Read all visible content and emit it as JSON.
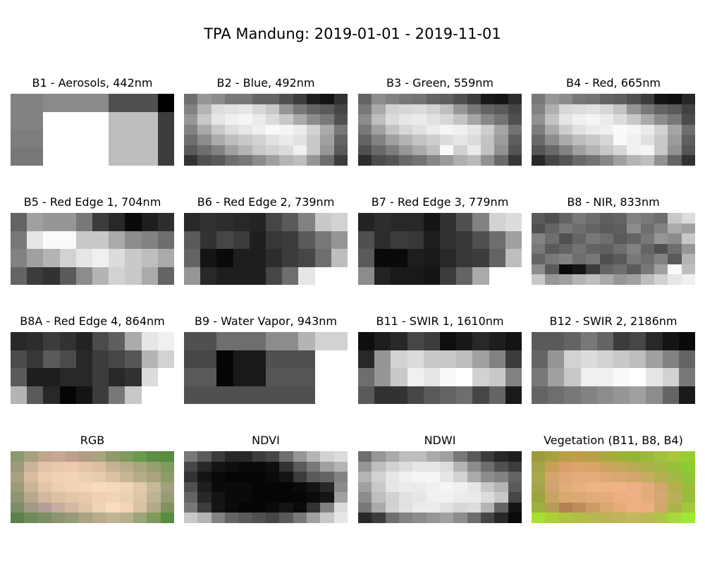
{
  "figure": {
    "title": "TPA Mandung: 2019-01-01 - 2019-11-01"
  },
  "chart_data": [
    {
      "type": "heatmap",
      "title": "B1 - Aerosols, 442nm",
      "colormap": "gray",
      "values": [
        [
          130,
          130,
          138,
          138,
          138,
          138,
          80,
          80,
          80,
          0
        ],
        [
          130,
          130,
          255,
          255,
          255,
          255,
          190,
          190,
          190,
          60
        ],
        [
          125,
          125,
          255,
          255,
          255,
          255,
          190,
          190,
          190,
          60
        ],
        [
          120,
          120,
          255,
          255,
          255,
          255,
          190,
          190,
          190,
          60
        ]
      ]
    },
    {
      "type": "heatmap",
      "title": "B2 - Blue, 492nm",
      "colormap": "gray",
      "values": [
        [
          110,
          150,
          140,
          120,
          120,
          100,
          100,
          80,
          60,
          30,
          20,
          50
        ],
        [
          130,
          180,
          220,
          225,
          230,
          215,
          200,
          150,
          120,
          100,
          90,
          70
        ],
        [
          150,
          200,
          230,
          240,
          245,
          235,
          220,
          200,
          170,
          140,
          120,
          80
        ],
        [
          130,
          170,
          200,
          220,
          230,
          240,
          250,
          245,
          235,
          210,
          170,
          120
        ],
        [
          110,
          140,
          170,
          190,
          200,
          210,
          225,
          235,
          225,
          200,
          160,
          100
        ],
        [
          90,
          110,
          130,
          160,
          180,
          200,
          210,
          220,
          240,
          200,
          150,
          90
        ],
        [
          50,
          80,
          90,
          110,
          120,
          140,
          160,
          180,
          190,
          150,
          110,
          60
        ]
      ]
    },
    {
      "type": "heatmap",
      "title": "B3 - Green, 559nm",
      "colormap": "gray",
      "values": [
        [
          100,
          140,
          130,
          120,
          115,
          100,
          95,
          80,
          60,
          25,
          20,
          45
        ],
        [
          120,
          170,
          210,
          215,
          220,
          210,
          190,
          150,
          120,
          100,
          90,
          70
        ],
        [
          140,
          190,
          220,
          230,
          235,
          225,
          215,
          195,
          165,
          135,
          115,
          80
        ],
        [
          120,
          160,
          195,
          215,
          225,
          235,
          245,
          240,
          230,
          205,
          165,
          115
        ],
        [
          100,
          130,
          160,
          180,
          195,
          205,
          220,
          230,
          220,
          195,
          155,
          95
        ],
        [
          80,
          105,
          125,
          150,
          170,
          190,
          250,
          210,
          235,
          195,
          145,
          85
        ],
        [
          45,
          75,
          85,
          105,
          115,
          135,
          155,
          175,
          185,
          145,
          105,
          55
        ]
      ]
    },
    {
      "type": "heatmap",
      "title": "B4 - Red, 665nm",
      "colormap": "gray",
      "values": [
        [
          120,
          150,
          140,
          120,
          115,
          100,
          95,
          80,
          60,
          20,
          15,
          40
        ],
        [
          130,
          175,
          215,
          220,
          225,
          215,
          195,
          150,
          120,
          100,
          90,
          65
        ],
        [
          145,
          195,
          230,
          240,
          245,
          235,
          220,
          200,
          170,
          140,
          120,
          75
        ],
        [
          125,
          170,
          205,
          225,
          235,
          240,
          250,
          245,
          235,
          210,
          165,
          110
        ],
        [
          105,
          140,
          170,
          190,
          200,
          215,
          250,
          240,
          225,
          200,
          155,
          95
        ],
        [
          85,
          105,
          130,
          160,
          180,
          200,
          215,
          240,
          245,
          200,
          145,
          85
        ],
        [
          40,
          70,
          85,
          105,
          115,
          135,
          160,
          180,
          190,
          145,
          100,
          50
        ]
      ]
    },
    {
      "type": "heatmap",
      "title": "B5 - Red Edge 1, 704nm",
      "colormap": "gray",
      "values": [
        [
          100,
          160,
          150,
          150,
          120,
          60,
          40,
          10,
          30,
          45
        ],
        [
          120,
          230,
          250,
          250,
          200,
          200,
          170,
          140,
          130,
          110
        ],
        [
          130,
          160,
          180,
          210,
          230,
          240,
          220,
          200,
          190,
          170
        ],
        [
          100,
          60,
          50,
          90,
          140,
          180,
          210,
          200,
          170,
          100
        ]
      ]
    },
    {
      "type": "heatmap",
      "title": "B6 - Red Edge 2, 739nm",
      "colormap": "gray",
      "values": [
        [
          40,
          50,
          45,
          40,
          35,
          70,
          90,
          130,
          200,
          210
        ],
        [
          90,
          50,
          70,
          60,
          30,
          55,
          60,
          90,
          120,
          150
        ],
        [
          100,
          20,
          10,
          30,
          30,
          45,
          60,
          70,
          110,
          190
        ],
        [
          150,
          40,
          30,
          30,
          30,
          70,
          110,
          230,
          255,
          255
        ]
      ]
    },
    {
      "type": "heatmap",
      "title": "B7 - Red Edge 3, 779nm",
      "colormap": "gray",
      "values": [
        [
          35,
          45,
          40,
          40,
          20,
          50,
          80,
          130,
          210,
          220
        ],
        [
          80,
          45,
          60,
          55,
          30,
          50,
          55,
          80,
          110,
          160
        ],
        [
          90,
          10,
          10,
          30,
          25,
          40,
          55,
          60,
          100,
          190
        ],
        [
          140,
          35,
          25,
          25,
          20,
          60,
          100,
          170,
          255,
          255
        ]
      ]
    },
    {
      "type": "heatmap",
      "title": "B8 - NIR, 833nm",
      "colormap": "gray",
      "values": [
        [
          90,
          80,
          100,
          120,
          110,
          95,
          100,
          130,
          120,
          110,
          200,
          220
        ],
        [
          80,
          100,
          120,
          110,
          100,
          90,
          95,
          140,
          110,
          130,
          170,
          160
        ],
        [
          130,
          110,
          80,
          100,
          120,
          110,
          90,
          100,
          120,
          150,
          140,
          200
        ],
        [
          120,
          90,
          100,
          115,
          100,
          95,
          110,
          130,
          100,
          80,
          110,
          150
        ],
        [
          100,
          120,
          130,
          110,
          120,
          80,
          90,
          120,
          110,
          130,
          90,
          180
        ],
        [
          140,
          90,
          10,
          20,
          60,
          100,
          110,
          90,
          120,
          160,
          250,
          190
        ],
        [
          200,
          150,
          160,
          180,
          190,
          170,
          150,
          160,
          190,
          210,
          230,
          240
        ]
      ]
    },
    {
      "type": "heatmap",
      "title": "B8A - Red Edge 4, 864nm",
      "colormap": "gray",
      "values": [
        [
          40,
          45,
          60,
          50,
          35,
          75,
          95,
          170,
          230,
          240
        ],
        [
          75,
          55,
          90,
          75,
          40,
          60,
          70,
          85,
          180,
          210
        ],
        [
          90,
          30,
          30,
          40,
          40,
          60,
          40,
          50,
          220,
          255
        ],
        [
          180,
          90,
          40,
          5,
          20,
          60,
          120,
          200,
          255,
          255
        ]
      ]
    },
    {
      "type": "heatmap",
      "title": "B9 - Water Vapor, 943nm",
      "colormap": "gray",
      "values": [
        [
          80,
          80,
          110,
          110,
          110,
          140,
          140,
          180,
          210,
          210
        ],
        [
          70,
          70,
          5,
          25,
          25,
          80,
          80,
          80,
          255,
          255
        ],
        [
          90,
          90,
          5,
          25,
          25,
          85,
          85,
          85,
          255,
          255
        ],
        [
          80,
          80,
          80,
          80,
          80,
          80,
          80,
          80,
          255,
          255
        ]
      ]
    },
    {
      "type": "heatmap",
      "title": "B11 - SWIR 1, 1610nm",
      "colormap": "gray",
      "values": [
        [
          15,
          30,
          40,
          70,
          60,
          15,
          25,
          40,
          30,
          20
        ],
        [
          40,
          150,
          210,
          220,
          200,
          200,
          190,
          160,
          130,
          60
        ],
        [
          110,
          150,
          200,
          240,
          230,
          250,
          255,
          210,
          200,
          130
        ],
        [
          90,
          50,
          50,
          70,
          90,
          100,
          110,
          70,
          100,
          25
        ]
      ]
    },
    {
      "type": "heatmap",
      "title": "B12 - SWIR 2, 2186nm",
      "colormap": "gray",
      "values": [
        [
          90,
          90,
          100,
          120,
          100,
          60,
          70,
          40,
          20,
          10
        ],
        [
          100,
          150,
          210,
          220,
          210,
          200,
          190,
          160,
          130,
          100
        ],
        [
          120,
          160,
          200,
          240,
          240,
          250,
          255,
          230,
          210,
          120
        ],
        [
          100,
          110,
          120,
          130,
          140,
          150,
          160,
          140,
          100,
          25
        ]
      ]
    },
    {
      "type": "heatmap",
      "title": "RGB",
      "colormap": "rgb",
      "values": [
        [
          "#8a9a6c",
          "#a9a07c",
          "#c0a58e",
          "#c8a794",
          "#bda08c",
          "#b09c84",
          "#a8a47c",
          "#8f9a6a",
          "#7e9a5c",
          "#6a9a4c",
          "#5c8e44",
          "#588c40"
        ],
        [
          "#9c9a78",
          "#c7b49a",
          "#e4c4a8",
          "#eac8ac",
          "#ecc9ae",
          "#e4c4a6",
          "#dcbfa0",
          "#c6b294",
          "#b8ac88",
          "#a8a47c",
          "#94a070",
          "#7e9a5e"
        ],
        [
          "#a8a07e",
          "#d8bc9e",
          "#eccdb0",
          "#f2d2b4",
          "#f4d3b6",
          "#eccfb2",
          "#e6cbac",
          "#dac2a2",
          "#c8b696",
          "#b8ac88",
          "#a8a47c",
          "#8c9c68"
        ],
        [
          "#9c9a78",
          "#c8b498",
          "#e2c6a8",
          "#ecceb0",
          "#f2d4b4",
          "#f4d6b8",
          "#f8dcbc",
          "#f6dabc",
          "#f0d6b6",
          "#e0caa8",
          "#c6b898",
          "#a0a07c"
        ],
        [
          "#8c9470",
          "#b8a88c",
          "#d2b89c",
          "#dcc0a2",
          "#e2c6a6",
          "#e8caaa",
          "#f0d2b2",
          "#f2d4b4",
          "#ead2b0",
          "#dcc8a6",
          "#bcb494",
          "#989c74"
        ],
        [
          "#7c8c68",
          "#a09a84",
          "#b49c98",
          "#c4aca0",
          "#d4b8a0",
          "#e0c6a8",
          "#eed4b4",
          "#f8dcbc",
          "#f4d6b6",
          "#d8c2a2",
          "#b2aa88",
          "#80925e"
        ],
        [
          "#5c8048",
          "#708a58",
          "#7c8e62",
          "#8c9470",
          "#98987a",
          "#a8a484",
          "#b8ac8a",
          "#c0b494",
          "#b8b08c",
          "#9ca47a",
          "#7c9a5c",
          "#588c40"
        ]
      ]
    },
    {
      "type": "heatmap",
      "title": "NDVI",
      "colormap": "gray",
      "values": [
        [
          120,
          90,
          60,
          40,
          40,
          60,
          70,
          110,
          150,
          180,
          210,
          220
        ],
        [
          70,
          40,
          20,
          15,
          10,
          10,
          15,
          50,
          90,
          120,
          160,
          180
        ],
        [
          50,
          20,
          10,
          5,
          5,
          5,
          10,
          20,
          60,
          90,
          100,
          130
        ],
        [
          80,
          30,
          10,
          10,
          10,
          5,
          5,
          5,
          10,
          20,
          40,
          140
        ],
        [
          100,
          40,
          20,
          10,
          10,
          5,
          5,
          5,
          5,
          10,
          20,
          160
        ],
        [
          120,
          60,
          20,
          10,
          5,
          5,
          10,
          20,
          10,
          50,
          130,
          220
        ],
        [
          200,
          180,
          130,
          100,
          90,
          80,
          70,
          90,
          120,
          160,
          200,
          230
        ]
      ]
    },
    {
      "type": "heatmap",
      "title": "NDWI",
      "colormap": "gray",
      "values": [
        [
          110,
          150,
          170,
          190,
          190,
          170,
          160,
          120,
          90,
          60,
          40,
          30
        ],
        [
          150,
          190,
          210,
          220,
          230,
          230,
          220,
          180,
          140,
          110,
          80,
          60
        ],
        [
          180,
          210,
          230,
          240,
          245,
          245,
          230,
          210,
          170,
          140,
          130,
          100
        ],
        [
          160,
          200,
          230,
          235,
          235,
          240,
          245,
          240,
          230,
          200,
          180,
          90
        ],
        [
          140,
          190,
          210,
          225,
          230,
          240,
          240,
          235,
          235,
          220,
          200,
          70
        ],
        [
          120,
          170,
          210,
          225,
          235,
          235,
          225,
          215,
          220,
          180,
          100,
          20
        ],
        [
          40,
          60,
          110,
          130,
          140,
          150,
          160,
          140,
          110,
          70,
          40,
          10
        ]
      ]
    },
    {
      "type": "heatmap",
      "title": "Vegetation (B11, B8, B4)",
      "colormap": "rgb",
      "values": [
        [
          "#9c9c3c",
          "#a8a040",
          "#b8a048",
          "#c09c4c",
          "#b8a048",
          "#a8a840",
          "#9cb038",
          "#94b434",
          "#9cb83c",
          "#a4c040",
          "#a8c83c",
          "#98cc30"
        ],
        [
          "#a4a448",
          "#c8a058",
          "#d8a068",
          "#dca46c",
          "#d8a468",
          "#cca460",
          "#c4a85c",
          "#b8ac54",
          "#acb04c",
          "#a4b844",
          "#98c03c",
          "#8ccc30"
        ],
        [
          "#a8a84c",
          "#d4a46c",
          "#e0a878",
          "#e4ac7c",
          "#e4ac7c",
          "#dca874",
          "#d8a870",
          "#d0a86c",
          "#c4ac60",
          "#b4b050",
          "#a4b848",
          "#90c438"
        ],
        [
          "#a4a448",
          "#d0a46c",
          "#e0ac78",
          "#e8b080",
          "#ecb484",
          "#ecb484",
          "#f0b488",
          "#ecb084",
          "#e4ac7c",
          "#d0a86c",
          "#b4b050",
          "#9cbc40"
        ],
        [
          "#9ca440",
          "#c8a464",
          "#d8a870",
          "#dca874",
          "#e0ac78",
          "#e4ac7c",
          "#ecb080",
          "#ecb084",
          "#e4ac7c",
          "#d4a870",
          "#b8b058",
          "#98bc40"
        ],
        [
          "#a0b040",
          "#b49c58",
          "#b48054",
          "#bc8c5c",
          "#cc9c68",
          "#d8a870",
          "#e4ac78",
          "#eeb080",
          "#ecb080",
          "#d0a86c",
          "#acb448",
          "#a4c83c"
        ],
        [
          "#a8e030",
          "#acd038",
          "#b0c440",
          "#b4bc48",
          "#b8b850",
          "#bcb454",
          "#c0b458",
          "#c4b85c",
          "#bcb854",
          "#b0c448",
          "#a8d83c",
          "#a0e834"
        ]
      ]
    }
  ]
}
